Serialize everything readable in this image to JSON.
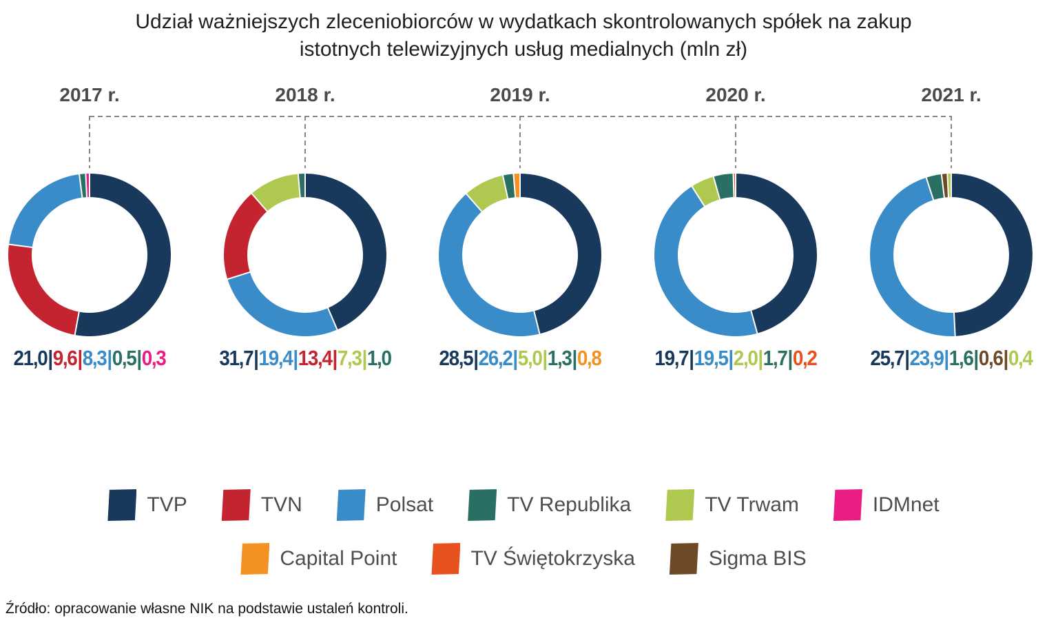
{
  "title": {
    "line1": "Udział ważniejszych zleceniobiorców w wydatkach skontrolowanych spółek na zakup",
    "line2": "istotnych telewizyjnych usług medialnych (mln zł)"
  },
  "source": "Źródło: opracowanie własne NIK na podstawie ustaleń kontroli.",
  "colors": {
    "TVP": "#18395B",
    "TVN": "#C42430",
    "Polsat": "#3A8CC8",
    "TV Republika": "#2A6F64",
    "TV Trwam": "#AEC850",
    "IDMnet": "#E91D84",
    "Capital Point": "#F39122",
    "TV Świętokrzyska": "#E7511E",
    "Sigma BIS": "#6D4927"
  },
  "legend": {
    "row1": [
      "TVP",
      "TVN",
      "Polsat",
      "TV Republika",
      "TV Trwam",
      "IDMnet"
    ],
    "row2": [
      "Capital Point",
      "TV Świętokrzyska",
      "Sigma BIS"
    ]
  },
  "chart_data": {
    "type": "pie",
    "subtype": "donut-small-multiples",
    "unit": "mln zł",
    "title": "Udział ważniejszych zleceniobiorców w wydatkach skontrolowanych spółek na zakup istotnych telewizyjnych usług medialnych (mln zł)",
    "legend_entries": [
      "TVP",
      "TVN",
      "Polsat",
      "TV Republika",
      "TV Trwam",
      "IDMnet",
      "Capital Point",
      "TV Świętokrzyska",
      "Sigma BIS"
    ],
    "years": [
      {
        "label": "2017 r.",
        "segments": [
          {
            "name": "TVP",
            "value": 21.0,
            "display": "21,0"
          },
          {
            "name": "TVN",
            "value": 9.6,
            "display": "9,6"
          },
          {
            "name": "Polsat",
            "value": 8.3,
            "display": "8,3"
          },
          {
            "name": "TV Republika",
            "value": 0.5,
            "display": "0,5"
          },
          {
            "name": "IDMnet",
            "value": 0.3,
            "display": "0,3"
          }
        ]
      },
      {
        "label": "2018 r.",
        "segments": [
          {
            "name": "TVP",
            "value": 31.7,
            "display": "31,7"
          },
          {
            "name": "Polsat",
            "value": 19.4,
            "display": "19,4"
          },
          {
            "name": "TVN",
            "value": 13.4,
            "display": "13,4"
          },
          {
            "name": "TV Trwam",
            "value": 7.3,
            "display": "7,3"
          },
          {
            "name": "TV Republika",
            "value": 1.0,
            "display": "1,0"
          }
        ]
      },
      {
        "label": "2019 r.",
        "segments": [
          {
            "name": "TVP",
            "value": 28.5,
            "display": "28,5"
          },
          {
            "name": "Polsat",
            "value": 26.2,
            "display": "26,2"
          },
          {
            "name": "TV Trwam",
            "value": 5.0,
            "display": "5,0"
          },
          {
            "name": "TV Republika",
            "value": 1.3,
            "display": "1,3"
          },
          {
            "name": "Capital Point",
            "value": 0.8,
            "display": "0,8"
          }
        ]
      },
      {
        "label": "2020 r.",
        "segments": [
          {
            "name": "TVP",
            "value": 19.7,
            "display": "19,7"
          },
          {
            "name": "Polsat",
            "value": 19.5,
            "display": "19,5"
          },
          {
            "name": "TV Trwam",
            "value": 2.0,
            "display": "2,0"
          },
          {
            "name": "TV Republika",
            "value": 1.7,
            "display": "1,7"
          },
          {
            "name": "TV Świętokrzyska",
            "value": 0.2,
            "display": "0,2"
          }
        ]
      },
      {
        "label": "2021 r.",
        "segments": [
          {
            "name": "TVP",
            "value": 25.7,
            "display": "25,7"
          },
          {
            "name": "Polsat",
            "value": 23.9,
            "display": "23,9"
          },
          {
            "name": "TV Republika",
            "value": 1.6,
            "display": "1,6"
          },
          {
            "name": "Sigma BIS",
            "value": 0.6,
            "display": "0,6"
          },
          {
            "name": "TV Trwam",
            "value": 0.4,
            "display": "0,4"
          }
        ]
      }
    ]
  }
}
